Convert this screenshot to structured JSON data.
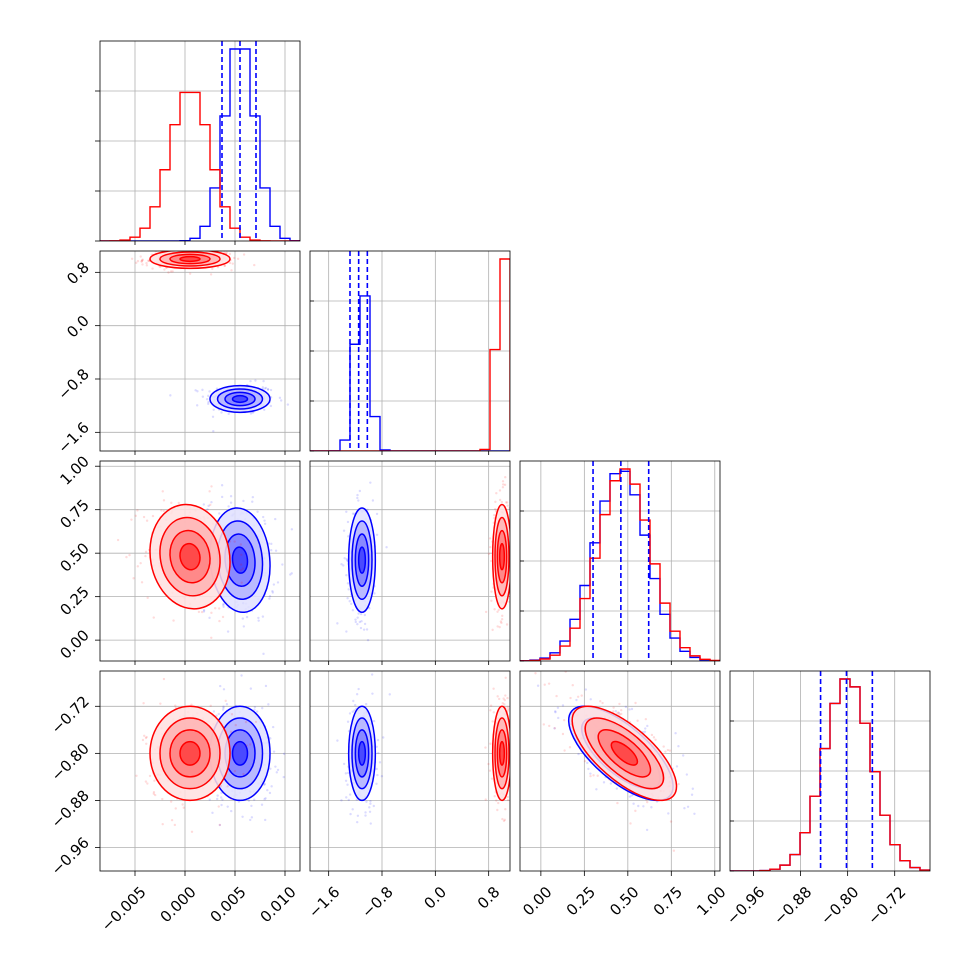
{
  "chart_data": {
    "type": "corner",
    "title": "",
    "parameters": [
      {
        "index": 0,
        "label": "",
        "range": [
          -0.0085,
          0.0115
        ],
        "ticks": [
          -0.005,
          0.0,
          0.005,
          0.01
        ],
        "tick_labels": [
          "−0.005",
          "0.000",
          "0.005",
          "0.010"
        ]
      },
      {
        "index": 1,
        "label": "",
        "range": [
          -1.88,
          1.12
        ],
        "ticks": [
          -1.6,
          -0.8,
          0.0,
          0.8
        ],
        "tick_labels": [
          "−1.6",
          "−0.8",
          "0.0",
          "0.8"
        ]
      },
      {
        "index": 2,
        "label": "",
        "range": [
          -0.12,
          1.03
        ],
        "ticks": [
          0.0,
          0.25,
          0.5,
          0.75,
          1.0
        ],
        "tick_labels": [
          "0.00",
          "0.25",
          "0.50",
          "0.75",
          "1.00"
        ]
      },
      {
        "index": 3,
        "label": "",
        "range": [
          -1.0,
          -0.66
        ],
        "ticks": [
          -0.96,
          -0.88,
          -0.8,
          -0.72
        ],
        "tick_labels": [
          "−0.96",
          "−0.88",
          "−0.80",
          "−0.72"
        ]
      }
    ],
    "grid": true,
    "series": [
      {
        "color": "#0000ff",
        "means": [
          0.0055,
          -1.1,
          0.46,
          -0.8
        ],
        "sds": [
          0.0015,
          0.1,
          0.15,
          0.04
        ],
        "correlations": {
          "0-1": 0.0,
          "0-2": -0.1,
          "0-3": 0.0,
          "1-2": 0.0,
          "1-3": 0.0,
          "2-3": -0.7
        },
        "quantiles": [
          [
            0.0037,
            0.0055,
            0.0071
          ],
          [
            -1.28,
            -1.15,
            -1.02
          ],
          [
            0.3,
            0.46,
            0.62
          ],
          [
            -0.846,
            -0.802,
            -0.758
          ]
        ]
      },
      {
        "color": "#ff0000",
        "means": [
          0.0005,
          1.0,
          0.48,
          -0.8
        ],
        "sds": [
          0.002,
          0.07,
          0.15,
          0.04
        ],
        "correlations": {
          "0-1": 0.0,
          "0-2": -0.1,
          "0-3": 0.0,
          "1-2": 0.0,
          "1-3": 0.0,
          "2-3": -0.7
        }
      }
    ],
    "quantile_lines": {
      "color": "#0000ff",
      "style": "dashed",
      "series": 0
    }
  }
}
